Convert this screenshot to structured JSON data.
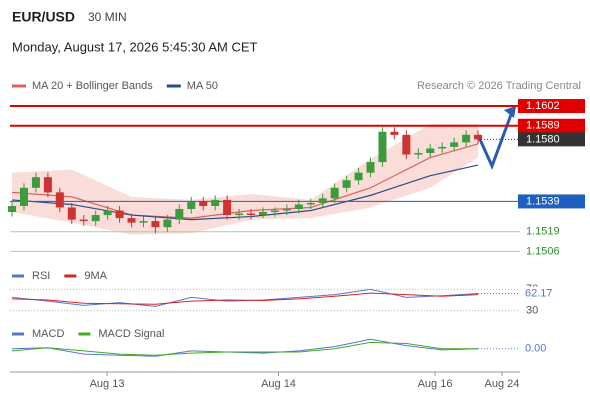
{
  "header": {
    "symbol": "EUR/USD",
    "timeframe": "30 MIN",
    "datetime": "Monday, August 17, 2026 5:45:30 AM CET"
  },
  "chart_data": [
    {
      "type": "candlestick",
      "credit": "Research © 2026 Trading Central",
      "up_color": "#3c9b3c",
      "down_color": "#cc3333",
      "x": [
        0,
        1,
        2,
        3,
        4,
        5,
        6,
        7,
        8,
        9,
        10,
        11,
        12,
        13,
        14,
        15,
        16,
        17,
        18,
        19,
        20,
        21,
        22,
        23,
        24,
        25,
        26,
        27,
        28,
        29,
        30,
        31,
        32,
        33,
        34,
        35,
        36,
        37,
        38,
        39
      ],
      "open": [
        1.1532,
        1.1536,
        1.1548,
        1.1555,
        1.1545,
        1.1535,
        1.1527,
        1.1526,
        1.153,
        1.1533,
        1.1528,
        1.1525,
        1.1526,
        1.1522,
        1.1527,
        1.1534,
        1.1539,
        1.1536,
        1.154,
        1.153,
        1.1531,
        1.153,
        1.1532,
        1.1533,
        1.1534,
        1.1537,
        1.1538,
        1.1541,
        1.1548,
        1.1553,
        1.1558,
        1.1565,
        1.1585,
        1.1583,
        1.157,
        1.1571,
        1.1574,
        1.1575,
        1.1578,
        1.1583
      ],
      "high": [
        1.1539,
        1.1551,
        1.1558,
        1.1558,
        1.1548,
        1.1538,
        1.153,
        1.1533,
        1.1536,
        1.1536,
        1.1531,
        1.1529,
        1.1529,
        1.153,
        1.1537,
        1.1542,
        1.1542,
        1.1543,
        1.1543,
        1.1534,
        1.1534,
        1.1535,
        1.1535,
        1.1537,
        1.154,
        1.1541,
        1.1544,
        1.1551,
        1.1556,
        1.1561,
        1.1568,
        1.1588,
        1.1588,
        1.1586,
        1.1574,
        1.1577,
        1.1578,
        1.1581,
        1.1586,
        1.1586
      ],
      "low": [
        1.1529,
        1.1533,
        1.1545,
        1.1542,
        1.1532,
        1.1524,
        1.1523,
        1.1523,
        1.1527,
        1.1525,
        1.1522,
        1.1522,
        1.1518,
        1.1519,
        1.1524,
        1.1531,
        1.1533,
        1.1533,
        1.1527,
        1.1527,
        1.1527,
        1.1528,
        1.1529,
        1.153,
        1.1531,
        1.1534,
        1.1535,
        1.1538,
        1.1545,
        1.155,
        1.1555,
        1.1562,
        1.158,
        1.1567,
        1.1567,
        1.1568,
        1.1571,
        1.1572,
        1.1575,
        1.1577
      ],
      "close": [
        1.1536,
        1.1548,
        1.1555,
        1.1545,
        1.1535,
        1.1527,
        1.1526,
        1.153,
        1.1533,
        1.1528,
        1.1525,
        1.1526,
        1.1522,
        1.1527,
        1.1534,
        1.1539,
        1.1536,
        1.154,
        1.153,
        1.1531,
        1.153,
        1.1532,
        1.1533,
        1.1534,
        1.1537,
        1.1538,
        1.1541,
        1.1548,
        1.1553,
        1.1558,
        1.1565,
        1.1585,
        1.1583,
        1.157,
        1.1571,
        1.1574,
        1.1575,
        1.1578,
        1.1583,
        1.158
      ],
      "series": [
        {
          "name": "MA 20 + Bollinger Bands",
          "color": "#e06060",
          "band_color": "#f9d4d0",
          "x": [
            0,
            5,
            10,
            15,
            20,
            25,
            30,
            35,
            39
          ],
          "values": [
            1.1545,
            1.1542,
            1.153,
            1.1528,
            1.1533,
            1.1535,
            1.1548,
            1.1568,
            1.1577
          ],
          "upper": [
            1.1558,
            1.156,
            1.1542,
            1.154,
            1.1544,
            1.154,
            1.1567,
            1.159,
            1.159
          ],
          "lower": [
            1.1532,
            1.1525,
            1.1517,
            1.1518,
            1.1527,
            1.1528,
            1.1535,
            1.1548,
            1.1568
          ]
        },
        {
          "name": "MA 50",
          "color": "#2a4a8a",
          "x": [
            0,
            5,
            10,
            15,
            20,
            25,
            30,
            35,
            39
          ],
          "values": [
            1.154,
            1.1537,
            1.153,
            1.1527,
            1.1529,
            1.1533,
            1.1543,
            1.1556,
            1.1563
          ]
        }
      ],
      "levels": [
        {
          "value": 1.1602,
          "label": "1.1602",
          "color": "#e00000",
          "style": "box"
        },
        {
          "value": 1.1589,
          "label": "1.1589",
          "color": "#e00000",
          "style": "box"
        },
        {
          "value": 1.158,
          "label": "1.1580",
          "color": "#333333",
          "style": "current"
        },
        {
          "value": 1.1539,
          "label": "1.1539",
          "color": "#1f5fbf",
          "style": "box"
        },
        {
          "value": 1.1519,
          "label": "1.1519",
          "color": "#2e8b2e",
          "style": "text"
        },
        {
          "value": 1.1506,
          "label": "1.1506",
          "color": "#2e8b2e",
          "style": "text"
        }
      ],
      "xlim": [
        -0.17,
        42.51
      ],
      "ylim": [
        1.1499,
        1.16126
      ],
      "xticks": [
        {
          "value": 7.95,
          "label": "Aug 13"
        },
        {
          "value": 22.3,
          "label": "Aug 14"
        },
        {
          "value": 35.4,
          "label": "Aug 16"
        },
        {
          "value": 41,
          "label": "Aug 24"
        }
      ]
    },
    {
      "type": "line",
      "x": [
        0,
        3,
        6,
        9,
        12,
        15,
        18,
        21,
        24,
        27,
        30,
        33,
        36,
        39
      ],
      "series": [
        {
          "name": "RSI",
          "color": "#5577cc",
          "values": [
            55,
            48,
            40,
            45,
            38,
            55,
            48,
            50,
            55,
            60,
            70,
            55,
            58,
            62.17
          ],
          "value_labels": [
            null,
            null,
            null,
            null,
            null,
            null,
            null,
            null,
            null,
            null,
            null,
            null,
            null,
            "62.17"
          ]
        },
        {
          "name": "9MA",
          "color": "#dd2222",
          "values": [
            52,
            50,
            44,
            43,
            42,
            48,
            50,
            49,
            52,
            57,
            63,
            60,
            57,
            60
          ]
        }
      ],
      "ylim": [
        20,
        80
      ],
      "yticks": [
        30,
        70
      ]
    },
    {
      "type": "line",
      "x": [
        0,
        3,
        6,
        9,
        12,
        15,
        18,
        21,
        24,
        27,
        30,
        33,
        36,
        39
      ],
      "series": [
        {
          "name": "MACD",
          "color": "#5577cc",
          "values": [
            0.0003,
            0.0004,
            -0.0002,
            -0.0003,
            -0.0004,
            0.0001,
            0.0,
            -0.0001,
            0.0001,
            0.0005,
            0.0012,
            0.0006,
            0.0002,
            0.0003
          ],
          "value_labels": [
            null,
            null,
            null,
            null,
            null,
            null,
            null,
            null,
            null,
            null,
            null,
            null,
            null,
            "0.00"
          ]
        },
        {
          "name": "MACD Signal",
          "color": "#44aa22",
          "values": [
            0.0001,
            0.0004,
            0.0001,
            -0.0002,
            -0.0003,
            -0.0001,
            0.0,
            0.0,
            0.0,
            0.0003,
            0.0009,
            0.0008,
            0.0003,
            0.0003
          ]
        }
      ],
      "ylim": [
        -0.0015,
        0.0015
      ]
    }
  ]
}
